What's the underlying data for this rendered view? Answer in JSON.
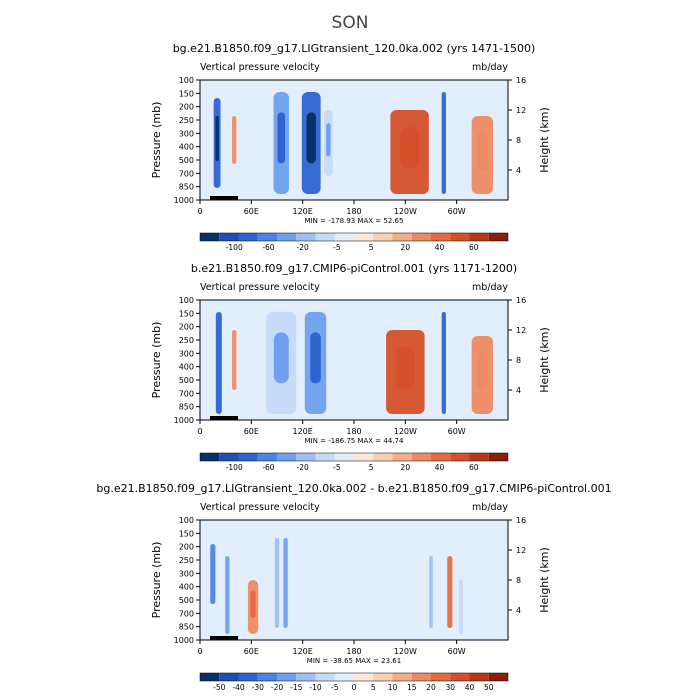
{
  "season": "SON",
  "chart_data": [
    {
      "type": "heatmap",
      "title": "bg.e21.B1850.f09_g17.LIGtransient_120.0ka.002 (yrs 1471-1500)",
      "left_label": "Vertical pressure velocity",
      "right_label": "mb/day",
      "ylabel": "Pressure (mb)",
      "ylabel_right": "Height (km)",
      "yticks": [
        "100",
        "150",
        "200",
        "250",
        "300",
        "400",
        "500",
        "700",
        "850",
        "1000"
      ],
      "yticks_right": [
        "16",
        "12",
        "8",
        "4"
      ],
      "xticks": [
        "0",
        "60E",
        "120E",
        "180",
        "120W",
        "60W"
      ],
      "stats": "MIN = -178.93   MAX =  52.65",
      "colorbar": {
        "levels": [
          "-100",
          "-60",
          "-20",
          "-5",
          "5",
          "20",
          "40",
          "60"
        ],
        "colors": [
          "#08306b",
          "#1f4fb5",
          "#2e64d2",
          "#4b84e6",
          "#6f9fee",
          "#9dbff4",
          "#c4daf8",
          "#e2eefb",
          "#fbe8d8",
          "#f8cfb3",
          "#f4ae8a",
          "#ee8a63",
          "#e46a41",
          "#d5502a",
          "#b8381a",
          "#8a2008"
        ]
      },
      "features": [
        {
          "lon": 20,
          "top": 0.15,
          "bottom": 0.9,
          "width": 8,
          "value": -100
        },
        {
          "lon": 95,
          "top": 0.1,
          "bottom": 0.95,
          "width": 18,
          "value": -60
        },
        {
          "lon": 130,
          "top": 0.1,
          "bottom": 0.95,
          "width": 22,
          "value": -100
        },
        {
          "lon": 150,
          "top": 0.25,
          "bottom": 0.8,
          "width": 10,
          "value": -20
        },
        {
          "lon": 285,
          "top": 0.1,
          "bottom": 0.95,
          "width": 5,
          "value": -100
        },
        {
          "lon": 40,
          "top": 0.3,
          "bottom": 0.7,
          "width": 5,
          "value": 20
        },
        {
          "lon": 245,
          "top": 0.25,
          "bottom": 0.95,
          "width": 45,
          "value": 40
        },
        {
          "lon": 330,
          "top": 0.3,
          "bottom": 0.95,
          "width": 25,
          "value": 20
        }
      ]
    },
    {
      "type": "heatmap",
      "title": "b.e21.B1850.f09_g17.CMIP6-piControl.001 (yrs 1171-1200)",
      "left_label": "Vertical pressure velocity",
      "right_label": "mb/day",
      "ylabel": "Pressure (mb)",
      "ylabel_right": "Height (km)",
      "yticks": [
        "100",
        "150",
        "200",
        "250",
        "300",
        "400",
        "500",
        "700",
        "850",
        "1000"
      ],
      "yticks_right": [
        "16",
        "12",
        "8",
        "4"
      ],
      "xticks": [
        "0",
        "60E",
        "120E",
        "180",
        "120W",
        "60W"
      ],
      "stats": "MIN = -186.75   MAX =  44.74",
      "colorbar": {
        "levels": [
          "-100",
          "-60",
          "-20",
          "-5",
          "5",
          "20",
          "40",
          "60"
        ],
        "colors": [
          "#08306b",
          "#1f4fb5",
          "#2e64d2",
          "#4b84e6",
          "#6f9fee",
          "#9dbff4",
          "#c4daf8",
          "#e2eefb",
          "#fbe8d8",
          "#f8cfb3",
          "#f4ae8a",
          "#ee8a63",
          "#e46a41",
          "#d5502a",
          "#b8381a",
          "#8a2008"
        ]
      },
      "features": [
        {
          "lon": 22,
          "top": 0.1,
          "bottom": 0.95,
          "width": 7,
          "value": -100
        },
        {
          "lon": 95,
          "top": 0.1,
          "bottom": 0.95,
          "width": 35,
          "value": -20
        },
        {
          "lon": 135,
          "top": 0.1,
          "bottom": 0.95,
          "width": 25,
          "value": -60
        },
        {
          "lon": 285,
          "top": 0.1,
          "bottom": 0.95,
          "width": 5,
          "value": -100
        },
        {
          "lon": 40,
          "top": 0.25,
          "bottom": 0.75,
          "width": 5,
          "value": 20
        },
        {
          "lon": 240,
          "top": 0.25,
          "bottom": 0.95,
          "width": 45,
          "value": 40
        },
        {
          "lon": 330,
          "top": 0.3,
          "bottom": 0.95,
          "width": 25,
          "value": 20
        }
      ]
    },
    {
      "type": "heatmap",
      "title": "bg.e21.B1850.f09_g17.LIGtransient_120.0ka.002 - b.e21.B1850.f09_g17.CMIP6-piControl.001",
      "left_label": "Vertical pressure velocity",
      "right_label": "mb/day",
      "ylabel": "Pressure (mb)",
      "ylabel_right": "Height (km)",
      "yticks": [
        "100",
        "150",
        "200",
        "250",
        "300",
        "400",
        "500",
        "700",
        "850",
        "1000"
      ],
      "yticks_right": [
        "16",
        "12",
        "8",
        "4"
      ],
      "xticks": [
        "0",
        "60E",
        "120E",
        "180",
        "120W",
        "60W"
      ],
      "stats": "MIN = -38.65   MAX =  23.61",
      "colorbar": {
        "levels": [
          "-50",
          "-40",
          "-30",
          "-20",
          "-15",
          "-10",
          "-5",
          "0",
          "5",
          "10",
          "15",
          "20",
          "30",
          "40",
          "50"
        ],
        "colors": [
          "#08306b",
          "#1f4fb5",
          "#2e64d2",
          "#4b84e6",
          "#6f9fee",
          "#9dbff4",
          "#c4daf8",
          "#e2eefb",
          "#fbe8d8",
          "#f8cfb3",
          "#f4ae8a",
          "#ee8a63",
          "#e46a41",
          "#d5502a",
          "#b8381a",
          "#8a2008"
        ]
      },
      "features": [
        {
          "lon": 15,
          "top": 0.2,
          "bottom": 0.7,
          "width": 6,
          "value": -30
        },
        {
          "lon": 32,
          "top": 0.3,
          "bottom": 0.95,
          "width": 5,
          "value": -20
        },
        {
          "lon": 90,
          "top": 0.15,
          "bottom": 0.9,
          "width": 5,
          "value": -15
        },
        {
          "lon": 100,
          "top": 0.15,
          "bottom": 0.9,
          "width": 5,
          "value": -20
        },
        {
          "lon": 62,
          "top": 0.5,
          "bottom": 0.95,
          "width": 12,
          "value": 15
        },
        {
          "lon": 270,
          "top": 0.3,
          "bottom": 0.9,
          "width": 4,
          "value": -15
        },
        {
          "lon": 292,
          "top": 0.3,
          "bottom": 0.9,
          "width": 6,
          "value": 20
        },
        {
          "lon": 305,
          "top": 0.5,
          "bottom": 0.95,
          "width": 5,
          "value": -10
        }
      ]
    }
  ]
}
